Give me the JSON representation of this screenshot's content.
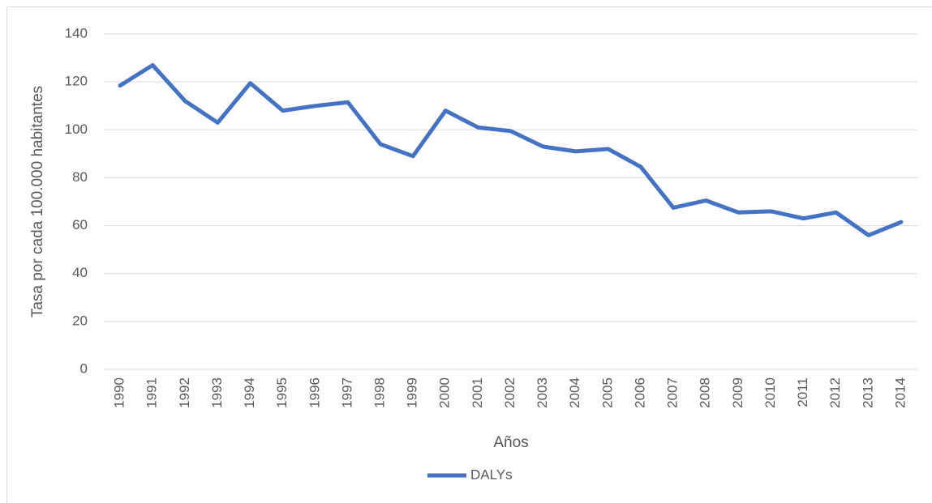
{
  "chart_data": {
    "type": "line",
    "y_label": "Tasa por cada 100.000 habitantes",
    "x_label": "Años",
    "categories": [
      "1990",
      "1991",
      "1992",
      "1993",
      "1994",
      "1995",
      "1996",
      "1997",
      "1998",
      "1999",
      "2000",
      "2001",
      "2002",
      "2003",
      "2004",
      "2005",
      "2006",
      "2007",
      "2008",
      "2009",
      "2010",
      "2011",
      "2012",
      "2013",
      "2014"
    ],
    "series": [
      {
        "name": "DALYs",
        "color": "#4472c4",
        "values": [
          118.5,
          127,
          112,
          103,
          119.5,
          108,
          110,
          111.5,
          94,
          89,
          108,
          101,
          99.5,
          93,
          91,
          92,
          84.5,
          67.5,
          70.5,
          65.5,
          66,
          63,
          65.5,
          56,
          61.5
        ]
      }
    ],
    "ylim": [
      0,
      140
    ],
    "yticks": [
      0,
      20,
      40,
      60,
      80,
      100,
      120,
      140
    ],
    "grid": true,
    "legend": "bottom"
  }
}
